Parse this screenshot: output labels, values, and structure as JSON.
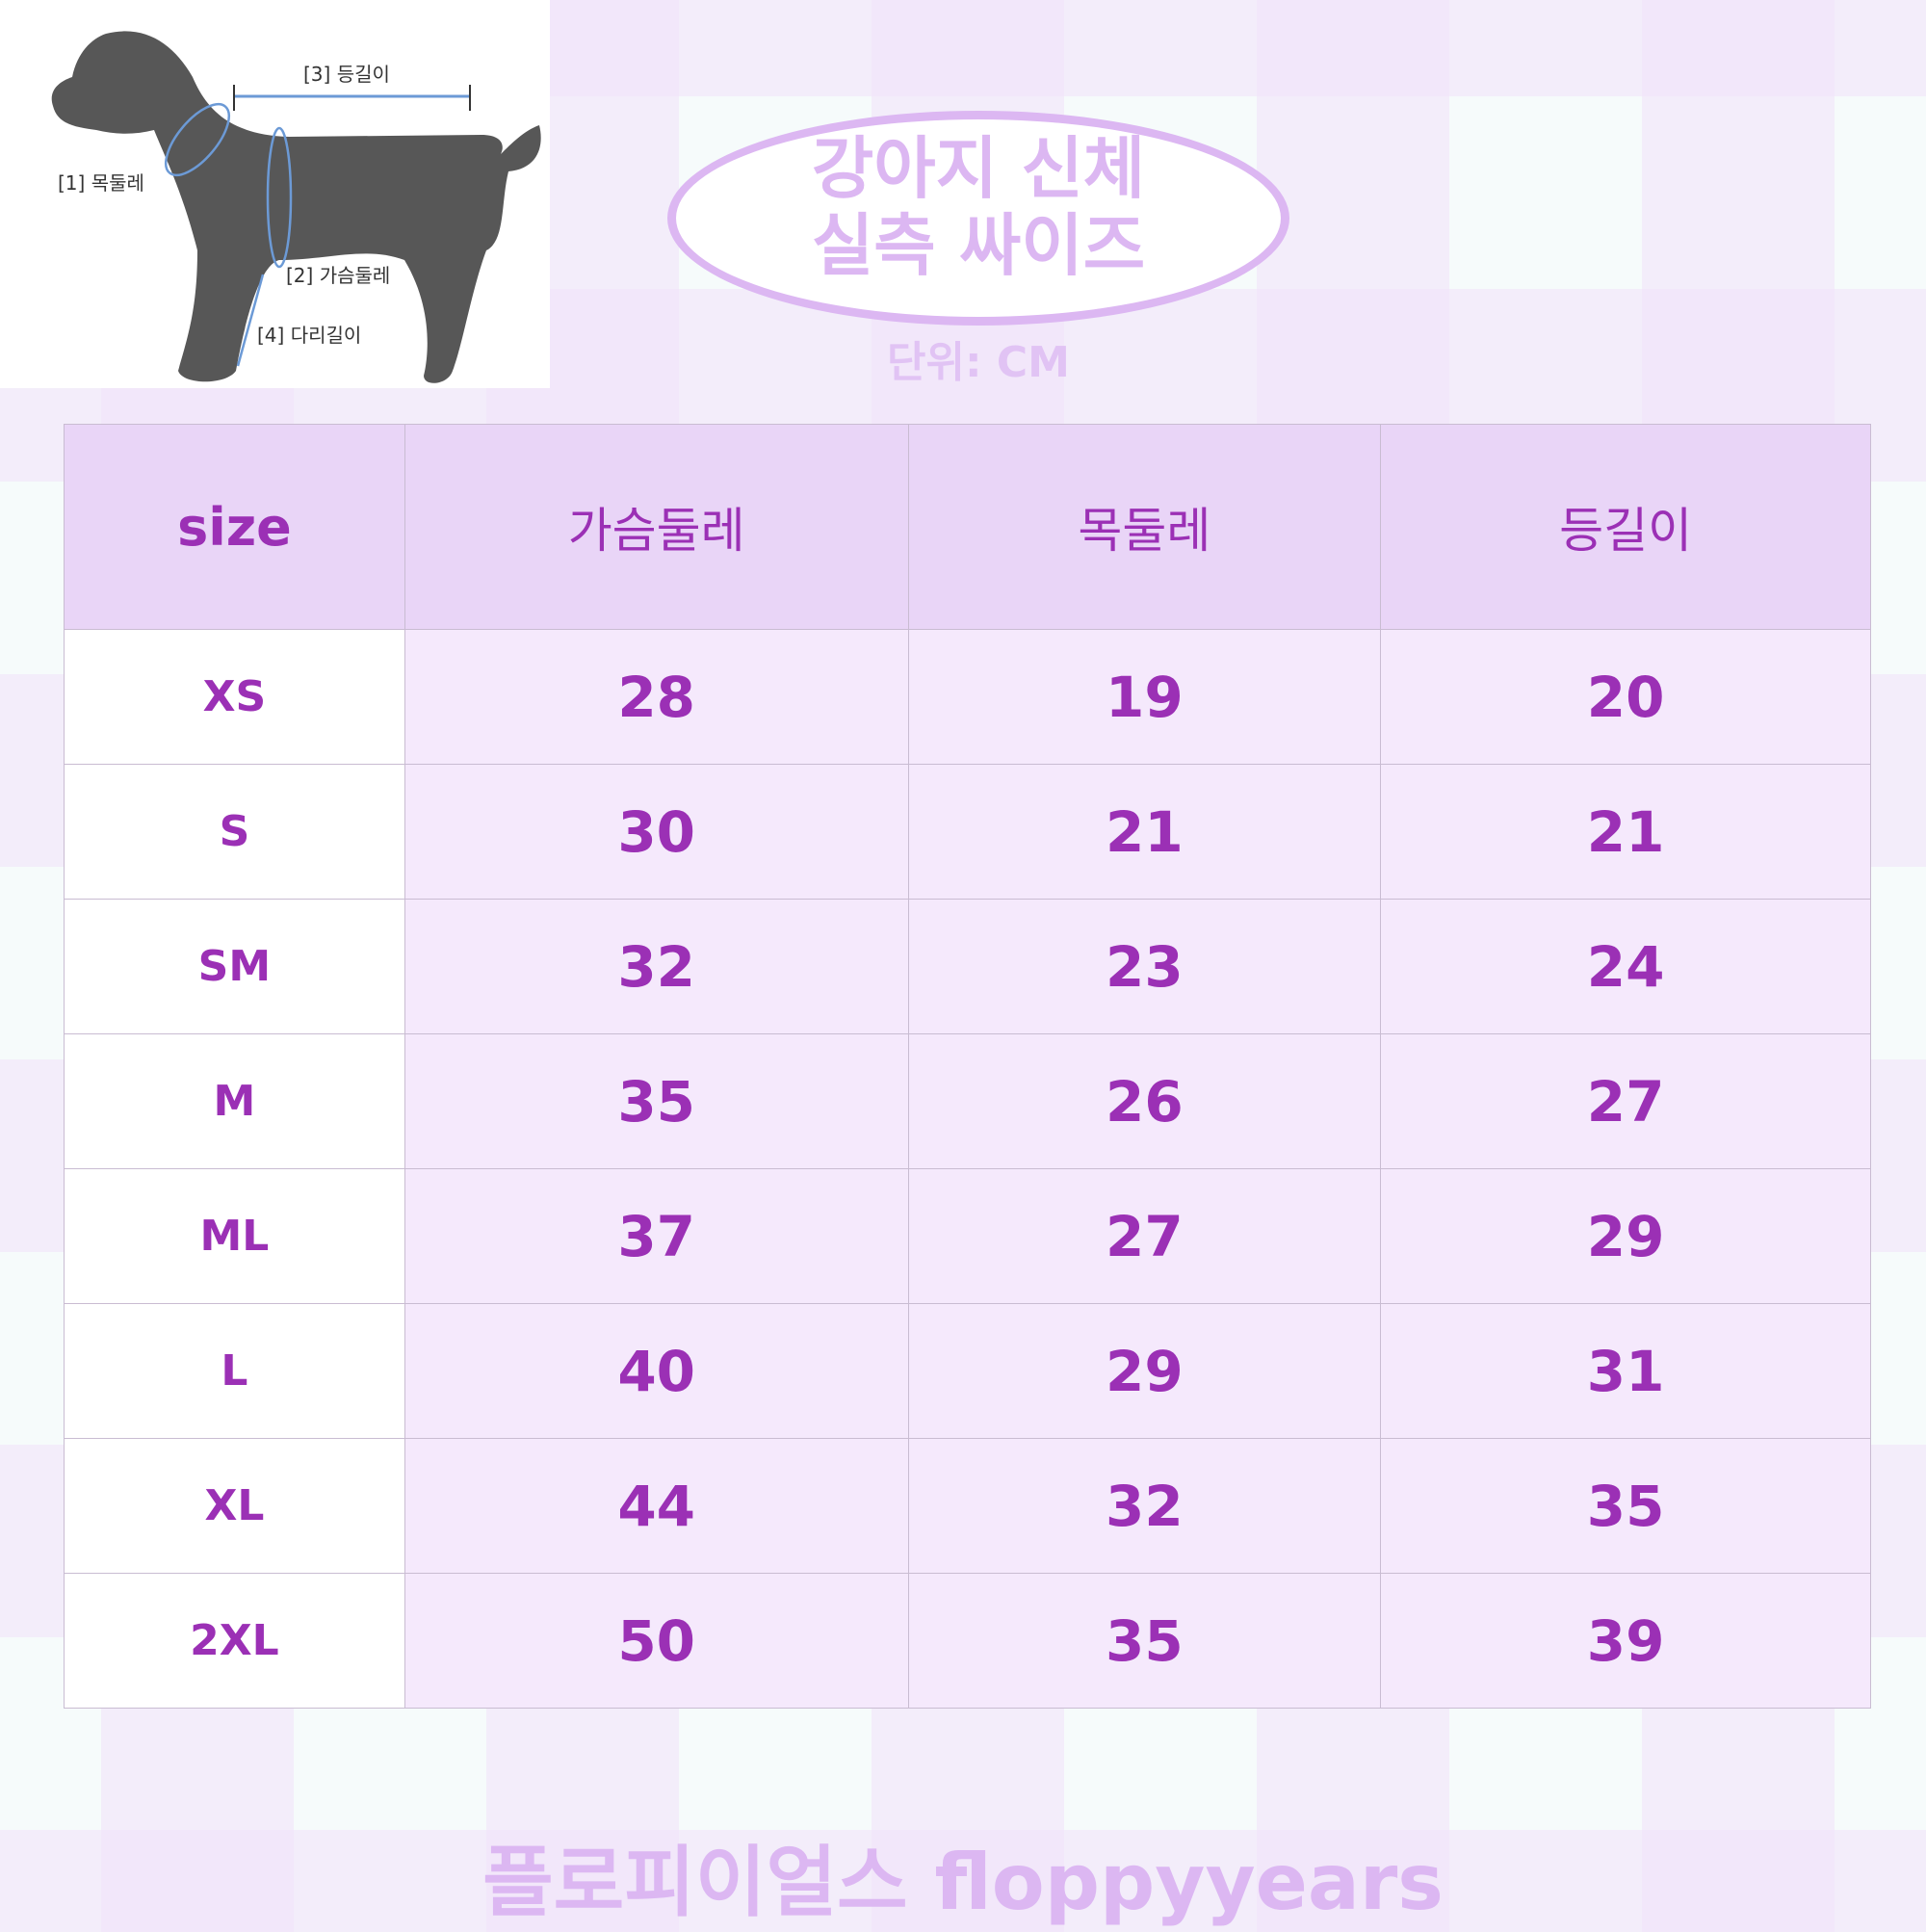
{
  "diagram": {
    "labels": [
      "[1] 목둘레",
      "[2] 가슴둘레",
      "[3] 등길이",
      "[4] 다리길이"
    ]
  },
  "title": {
    "line1": "강아지 신체",
    "line2": "실측 싸이즈",
    "unit": "단위: CM"
  },
  "table": {
    "headers": [
      "size",
      "가슴둘레",
      "목둘레",
      "등길이"
    ],
    "rows": [
      [
        "XS",
        "28",
        "19",
        "20"
      ],
      [
        "S",
        "30",
        "21",
        "21"
      ],
      [
        "SM",
        "32",
        "23",
        "24"
      ],
      [
        "M",
        "35",
        "26",
        "27"
      ],
      [
        "ML",
        "37",
        "27",
        "29"
      ],
      [
        "L",
        "40",
        "29",
        "31"
      ],
      [
        "XL",
        "44",
        "32",
        "35"
      ],
      [
        "2XL",
        "50",
        "35",
        "39"
      ]
    ]
  },
  "footer": "플로피이얼스 floppyyears",
  "colors": {
    "accent": "#9b30b5",
    "header_bg": "#e9d5f7",
    "cell_bg": "#f5e9fc",
    "title": "#dcb7f2"
  }
}
